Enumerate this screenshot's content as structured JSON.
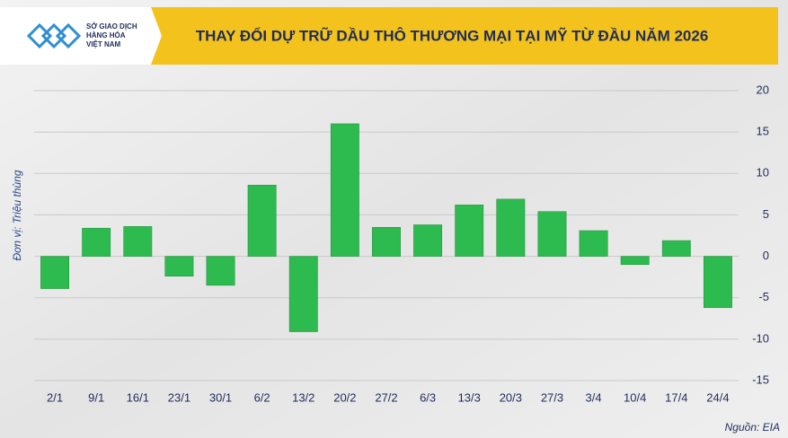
{
  "chart_data": {
    "type": "bar",
    "title": "THAY ĐỔI DỰ TRỮ DẦU THÔ THƯƠNG MẠI TẠI MỸ TỪ ĐẦU NĂM 2026",
    "logo_text": [
      "SỞ GIAO DỊCH",
      "HÀNG HÓA",
      "VIỆT NAM"
    ],
    "ylabel": "Đơn vị: Triệu thùng",
    "source": "Nguồn: EIA",
    "categories": [
      "2/1",
      "9/1",
      "16/1",
      "23/1",
      "30/1",
      "6/2",
      "13/2",
      "20/2",
      "27/2",
      "6/3",
      "13/3",
      "20/3",
      "27/3",
      "3/4",
      "10/4",
      "17/4",
      "24/4"
    ],
    "values": [
      -3.9,
      3.4,
      3.6,
      -2.4,
      -3.5,
      8.6,
      -9.1,
      16.0,
      3.5,
      3.8,
      6.2,
      6.9,
      5.4,
      3.1,
      -1.0,
      1.9,
      -6.2
    ],
    "color": "#2dbb4f",
    "ylim": [
      -15,
      20
    ],
    "yticks": [
      -15,
      -10,
      -5,
      0,
      5,
      10,
      15,
      20
    ],
    "grid": true
  }
}
